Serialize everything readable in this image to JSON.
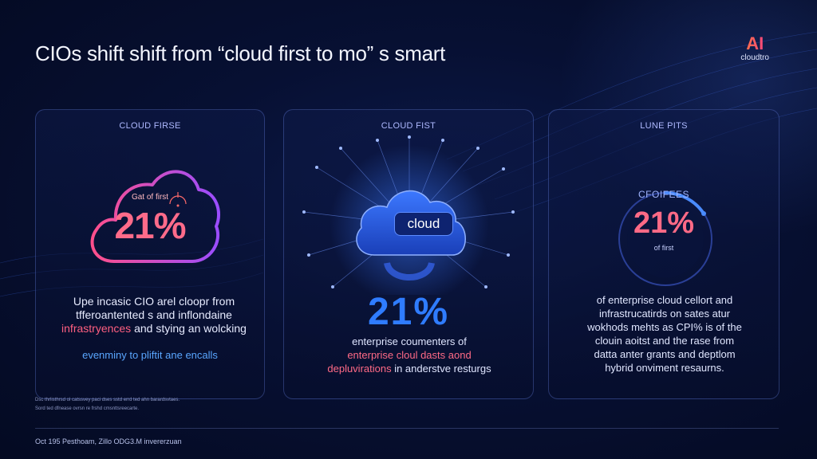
{
  "headline": "CIOs shift shift from “cloud first to mo” s smart",
  "logo": {
    "mark": "AI",
    "sub": "cloudtro"
  },
  "cards": [
    {
      "title": "CLOUD FIRSE",
      "small_label": "Gat of first",
      "stat": "21%",
      "text_line1": "Upe incasic CIO arel cloopr from",
      "text_line2": "tfferoantented s and inflondaine",
      "text_line3_highlight": "infrastryences",
      "text_line3_rest": " and stying an wolcking",
      "accent_line": "evenminy to pliftit ane encalls"
    },
    {
      "title": "CLOUD FIST",
      "cloud_label": "cloud",
      "stat": "21%",
      "text_line1": "enterprise coumenters of",
      "text_line2_highlight": "enterprise cloul dasts aond",
      "text_line3_highlight": "depluvirations",
      "text_line3_rest": " in anderstve resturgs"
    },
    {
      "title": "LUNE PITS",
      "ring_top": "CFOIFEES",
      "stat": "21%",
      "ring_bottom": "of first",
      "text_line1": "of enterprise cloud cellort and",
      "text_line2": "infrastrucatirds on sates atur",
      "text_line3": "wokhods mehts as CPI% is of the",
      "text_line4": "clouin aoitst and the rase from",
      "text_line5": "datta anter grants and deptlom",
      "text_line6": "hybrid onviment resaurns."
    }
  ],
  "footnote": {
    "line1": "Dsc thrlisthrsd ol catssvey paci dses sstd errd ted ahn barardsvtaes.",
    "line2": "Sord ted dfnease ovrsn re frshd cmsnttsreecarte."
  },
  "source": "Oct 195 Pesthoam, Zillo ODG3.M invererzuan",
  "colors": {
    "pink": "#ff6b8a",
    "blue": "#2f7cff",
    "accent_blue": "#59a6ff",
    "background": "#071033"
  }
}
